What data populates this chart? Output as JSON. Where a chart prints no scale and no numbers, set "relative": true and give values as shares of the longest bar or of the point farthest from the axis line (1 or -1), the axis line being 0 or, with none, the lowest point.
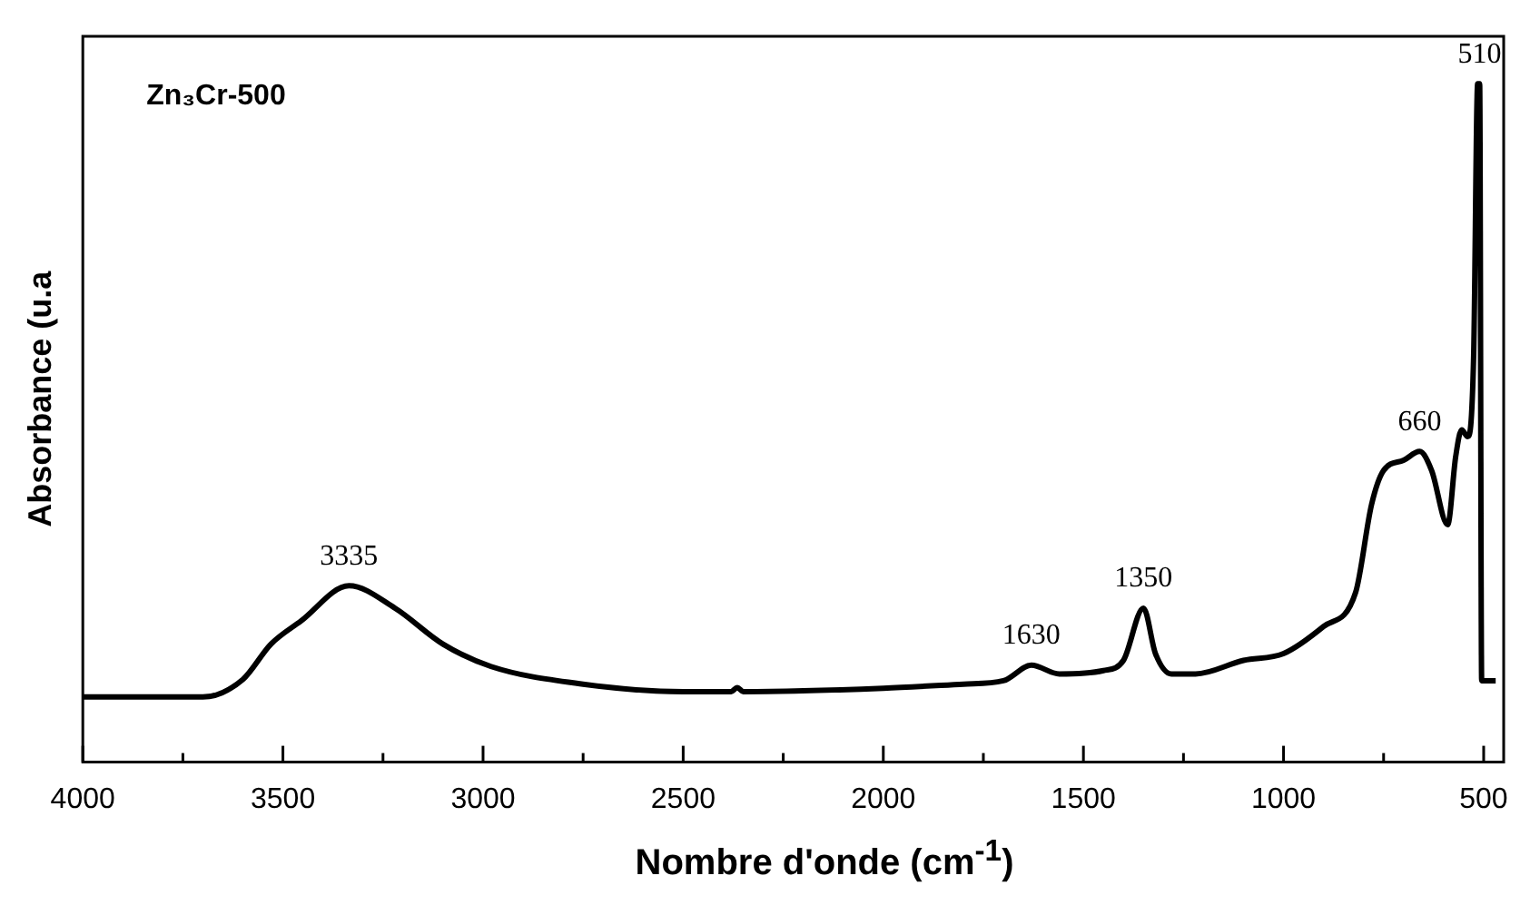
{
  "chart_data": {
    "type": "line",
    "title": "Zn₃Cr-500",
    "xlabel": "Nombre d'onde (cm$^{-1}$)",
    "ylabel": "Absorbance (u.a",
    "relative": true,
    "xlim": [
      4000,
      450
    ],
    "xticks": [
      4000,
      {
        "value": 3750,
        "label": null
      },
      3500,
      {
        "value": 3250,
        "label": null
      },
      3000,
      {
        "value": 2750,
        "label": null
      },
      2500,
      {
        "value": 2250,
        "label": null
      },
      2000,
      {
        "value": 1750,
        "label": null
      },
      1500,
      {
        "value": 1250,
        "label": null
      },
      1000,
      {
        "value": 750,
        "label": null
      },
      500
    ],
    "series": [
      {
        "color": "#000000",
        "x": [
          4000,
          3700,
          3600,
          3530,
          3455,
          3335,
          3220,
          3100,
          2980,
          2750,
          2500,
          2380,
          2365,
          2350,
          2000,
          1800,
          1700,
          1630,
          1560,
          1450,
          1400,
          1350,
          1320,
          1280,
          1220,
          1100,
          1000,
          900,
          820,
          780,
          750,
          700,
          660,
          630,
          590,
          570,
          555,
          540,
          525,
          515,
          510,
          505,
          470
        ],
        "values": [
          0.096,
          0.096,
          0.122,
          0.174,
          0.208,
          0.26,
          0.227,
          0.174,
          0.141,
          0.115,
          0.104,
          0.104,
          0.11,
          0.104,
          0.109,
          0.115,
          0.12,
          0.143,
          0.13,
          0.135,
          0.15,
          0.227,
          0.16,
          0.13,
          0.13,
          0.15,
          0.16,
          0.2,
          0.25,
          0.38,
          0.43,
          0.445,
          0.458,
          0.43,
          0.35,
          0.45,
          0.49,
          0.48,
          0.6,
          1.0,
          1.0,
          0.12,
          0.12
        ]
      }
    ],
    "annotations": [
      {
        "text": "3335",
        "x": 3335,
        "y": 0.26
      },
      {
        "text": "1630",
        "x": 1630,
        "y": 0.143
      },
      {
        "text": "1350",
        "x": 1350,
        "y": 0.227
      },
      {
        "text": "660",
        "x": 660,
        "y": 0.458
      },
      {
        "text": "510",
        "x": 510,
        "y": 1.0
      }
    ]
  }
}
